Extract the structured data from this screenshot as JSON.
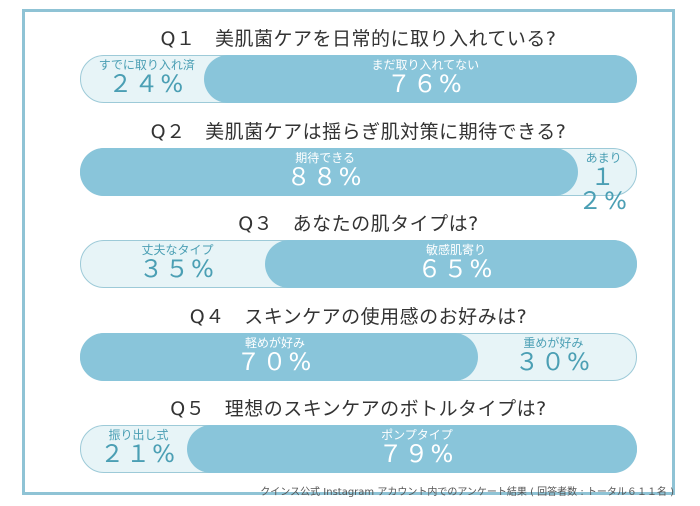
{
  "colors": {
    "frame": "#8fc3d5",
    "dark": "#89c5da",
    "light": "#e7f4f7",
    "light_text": "#4b9fb4"
  },
  "questions": [
    {
      "title": "Q１　美肌菌ケアを日常的に取り入れている?",
      "a_label": "すでに取り入れ済",
      "a_pct": "２４%",
      "b_label": "まだ取り入れてない",
      "b_pct": "７６%",
      "a_value": 24,
      "b_value": 76,
      "dark": "b"
    },
    {
      "title": "Q２　美肌菌ケアは揺らぎ肌対策に期待できる?",
      "a_label": "期待できる",
      "a_pct": "８８%",
      "b_label": "あまり",
      "b_pct": "１２%",
      "a_value": 88,
      "b_value": 12,
      "dark": "a"
    },
    {
      "title": "Q３　あなたの肌タイプは?",
      "a_label": "丈夫なタイプ",
      "a_pct": "３５%",
      "b_label": "敏感肌寄り",
      "b_pct": "６５%",
      "a_value": 35,
      "b_value": 65,
      "dark": "b"
    },
    {
      "title": "Q４　スキンケアの使用感のお好みは?",
      "a_label": "軽めが好み",
      "a_pct": "７０%",
      "b_label": "重めが好み",
      "b_pct": "３０%",
      "a_value": 70,
      "b_value": 30,
      "dark": "a"
    },
    {
      "title": "Q５　理想のスキンケアのボトルタイプは?",
      "a_label": "振り出し式",
      "a_pct": "２１%",
      "b_label": "ポンプタイプ",
      "b_pct": "７９%",
      "a_value": 21,
      "b_value": 79,
      "dark": "b"
    }
  ],
  "footer": "クインス公式 Instagram アカウント内でのアンケート結果 ( 回答者数 : トータル６１１名 )"
}
